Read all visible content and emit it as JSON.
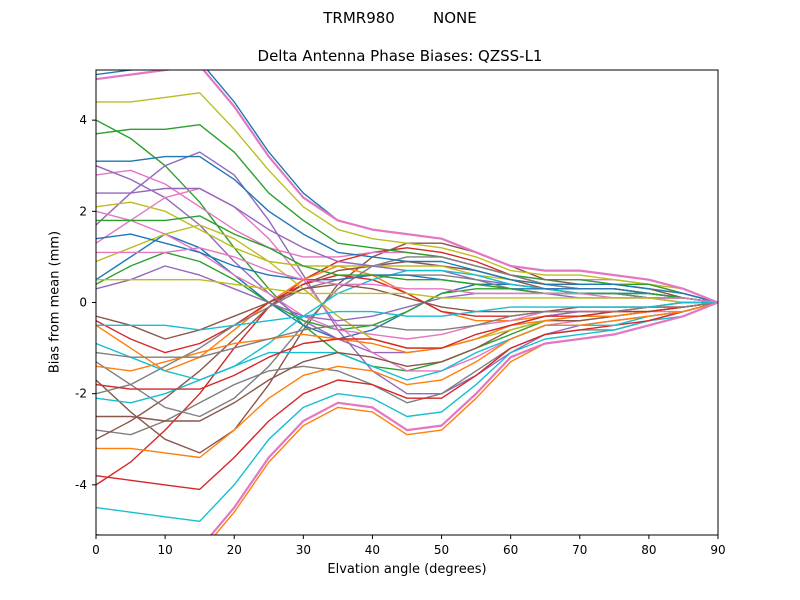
{
  "figure": {
    "suptitle": "TRMR980        NONE"
  },
  "chart_data": {
    "type": "line",
    "title": "Delta Antenna Phase Biases: QZSS-L1",
    "suptitle": "TRMR980        NONE",
    "xlabel": "Elvation angle (degrees)",
    "ylabel": "Bias from mean (mm)",
    "xlim": [
      0,
      90
    ],
    "ylim": [
      -5.1,
      5.1
    ],
    "xticks": [
      0,
      10,
      20,
      30,
      40,
      50,
      60,
      70,
      80,
      90
    ],
    "yticks": [
      -4,
      -2,
      0,
      2,
      4
    ],
    "grid": false,
    "legend": null,
    "x": [
      0,
      5,
      10,
      15,
      20,
      25,
      30,
      35,
      40,
      45,
      50,
      55,
      60,
      65,
      70,
      75,
      80,
      85,
      90
    ],
    "palette": [
      "#1f77b4",
      "#ff7f0e",
      "#2ca02c",
      "#d62728",
      "#9467bd",
      "#8c564b",
      "#e377c2",
      "#7f7f7f",
      "#bcbd22",
      "#17becf"
    ],
    "series": [
      {
        "color": "#1f77b4",
        "values": [
          5.0,
          5.1,
          5.2,
          5.3,
          4.4,
          3.3,
          2.4,
          1.8,
          1.6,
          1.5,
          1.4,
          1.1,
          0.8,
          0.7,
          0.7,
          0.6,
          0.5,
          0.3,
          0.0
        ]
      },
      {
        "color": "#ff7f0e",
        "values": [
          -5.2,
          -5.3,
          -5.4,
          -5.5,
          -4.6,
          -3.5,
          -2.7,
          -2.3,
          -2.4,
          -2.9,
          -2.8,
          -2.1,
          -1.3,
          -0.9,
          -0.8,
          -0.7,
          -0.5,
          -0.3,
          0.0
        ]
      },
      {
        "color": "#2ca02c",
        "values": [
          4.0,
          3.6,
          3.0,
          2.2,
          1.2,
          0.3,
          -0.5,
          -1.1,
          -1.4,
          -1.5,
          -1.3,
          -1.0,
          -0.7,
          -0.4,
          -0.3,
          -0.3,
          -0.2,
          -0.1,
          0.0
        ]
      },
      {
        "color": "#d62728",
        "values": [
          -4.0,
          -3.5,
          -2.8,
          -2.0,
          -1.0,
          -0.1,
          0.5,
          0.9,
          1.1,
          1.2,
          1.1,
          0.9,
          0.6,
          0.4,
          0.3,
          0.3,
          0.2,
          0.1,
          0.0
        ]
      },
      {
        "color": "#9467bd",
        "values": [
          1.7,
          2.4,
          3.0,
          3.3,
          2.8,
          1.8,
          0.6,
          -0.6,
          -1.5,
          -2.0,
          -2.0,
          -1.6,
          -1.1,
          -0.7,
          -0.5,
          -0.4,
          -0.3,
          -0.2,
          0.0
        ]
      },
      {
        "color": "#8c564b",
        "values": [
          -1.7,
          -2.4,
          -3.0,
          -3.3,
          -2.8,
          -1.8,
          -0.6,
          0.4,
          1.0,
          1.3,
          1.3,
          1.1,
          0.8,
          0.5,
          0.4,
          0.4,
          0.3,
          0.1,
          0.0
        ]
      },
      {
        "color": "#e377c2",
        "values": [
          2.8,
          2.9,
          2.6,
          2.1,
          1.6,
          1.2,
          1.0,
          1.0,
          1.1,
          1.1,
          1.0,
          0.8,
          0.6,
          0.5,
          0.5,
          0.5,
          0.4,
          0.2,
          0.0
        ]
      },
      {
        "color": "#7f7f7f",
        "values": [
          -2.8,
          -2.9,
          -2.6,
          -2.2,
          -1.8,
          -1.5,
          -1.4,
          -1.5,
          -1.8,
          -2.2,
          -2.0,
          -1.5,
          -1.0,
          -0.7,
          -0.6,
          -0.6,
          -0.4,
          -0.2,
          0.0
        ]
      },
      {
        "color": "#bcbd22",
        "values": [
          4.4,
          4.4,
          4.5,
          4.6,
          3.8,
          2.9,
          2.1,
          1.6,
          1.4,
          1.3,
          1.2,
          1.0,
          0.7,
          0.6,
          0.6,
          0.5,
          0.4,
          0.3,
          0.0
        ]
      },
      {
        "color": "#17becf",
        "values": [
          -4.5,
          -4.6,
          -4.7,
          -4.8,
          -4.0,
          -3.0,
          -2.3,
          -2.0,
          -2.1,
          -2.5,
          -2.4,
          -1.8,
          -1.1,
          -0.8,
          -0.7,
          -0.6,
          -0.4,
          -0.3,
          0.0
        ]
      },
      {
        "color": "#1f77b4",
        "values": [
          0.5,
          1.0,
          1.5,
          1.2,
          0.6,
          0.0,
          -0.5,
          -0.8,
          -0.6,
          -0.2,
          0.2,
          0.4,
          0.4,
          0.3,
          0.2,
          0.2,
          0.1,
          0.1,
          0.0
        ]
      },
      {
        "color": "#ff7f0e",
        "values": [
          -0.5,
          -1.0,
          -1.5,
          -1.2,
          -0.6,
          0.0,
          0.5,
          0.8,
          0.6,
          0.2,
          -0.2,
          -0.4,
          -0.4,
          -0.3,
          -0.2,
          -0.2,
          -0.1,
          -0.1,
          0.0
        ]
      },
      {
        "color": "#2ca02c",
        "values": [
          3.7,
          3.8,
          3.8,
          3.9,
          3.3,
          2.4,
          1.8,
          1.3,
          1.2,
          1.1,
          1.0,
          0.8,
          0.6,
          0.5,
          0.5,
          0.4,
          0.4,
          0.2,
          0.0
        ]
      },
      {
        "color": "#d62728",
        "values": [
          -3.8,
          -3.9,
          -4.0,
          -4.1,
          -3.4,
          -2.6,
          -2.0,
          -1.7,
          -1.8,
          -2.1,
          -2.1,
          -1.6,
          -1.0,
          -0.7,
          -0.6,
          -0.5,
          -0.4,
          -0.2,
          0.0
        ]
      },
      {
        "color": "#9467bd",
        "values": [
          3.0,
          2.7,
          2.3,
          1.7,
          0.9,
          0.2,
          -0.4,
          -0.8,
          -1.1,
          -1.1,
          -1.0,
          -0.8,
          -0.5,
          -0.3,
          -0.2,
          -0.2,
          -0.2,
          -0.1,
          0.0
        ]
      },
      {
        "color": "#8c564b",
        "values": [
          -3.0,
          -2.6,
          -2.1,
          -1.5,
          -0.8,
          -0.1,
          0.4,
          0.7,
          0.8,
          0.9,
          0.8,
          0.7,
          0.5,
          0.3,
          0.2,
          0.2,
          0.2,
          0.1,
          0.0
        ]
      },
      {
        "color": "#e377c2",
        "values": [
          1.3,
          1.8,
          2.3,
          2.5,
          2.1,
          1.4,
          0.5,
          -0.5,
          -1.1,
          -1.5,
          -1.5,
          -1.2,
          -0.8,
          -0.5,
          -0.4,
          -0.3,
          -0.2,
          -0.2,
          0.0
        ]
      },
      {
        "color": "#7f7f7f",
        "values": [
          -1.3,
          -1.8,
          -2.3,
          -2.5,
          -2.1,
          -1.4,
          -0.5,
          0.3,
          0.8,
          1.0,
          1.0,
          0.8,
          0.6,
          0.4,
          0.3,
          0.3,
          0.2,
          0.1,
          0.0
        ]
      },
      {
        "color": "#bcbd22",
        "values": [
          2.1,
          2.2,
          2.0,
          1.6,
          1.2,
          0.9,
          0.8,
          0.8,
          0.8,
          0.8,
          0.8,
          0.6,
          0.5,
          0.4,
          0.4,
          0.4,
          0.3,
          0.2,
          0.0
        ]
      },
      {
        "color": "#17becf",
        "values": [
          -2.1,
          -2.2,
          -2.0,
          -1.7,
          -1.4,
          -1.1,
          -1.1,
          -1.1,
          -1.4,
          -1.7,
          -1.5,
          -1.1,
          -0.8,
          -0.5,
          -0.5,
          -0.5,
          -0.3,
          -0.2,
          0.0
        ]
      },
      {
        "color": "#1f77b4",
        "values": [
          3.1,
          3.1,
          3.2,
          3.2,
          2.7,
          2.0,
          1.5,
          1.1,
          1.0,
          0.9,
          0.9,
          0.7,
          0.5,
          0.4,
          0.4,
          0.4,
          0.3,
          0.2,
          0.0
        ]
      },
      {
        "color": "#ff7f0e",
        "values": [
          -3.2,
          -3.2,
          -3.3,
          -3.4,
          -2.8,
          -2.1,
          -1.6,
          -1.4,
          -1.5,
          -1.8,
          -1.7,
          -1.3,
          -0.8,
          -0.5,
          -0.5,
          -0.4,
          -0.3,
          -0.2,
          0.0
        ]
      },
      {
        "color": "#2ca02c",
        "values": [
          0.4,
          0.8,
          1.1,
          0.9,
          0.5,
          0.0,
          -0.4,
          -0.6,
          -0.5,
          -0.2,
          0.2,
          0.3,
          0.3,
          0.2,
          0.2,
          0.2,
          0.1,
          0.1,
          0.0
        ]
      },
      {
        "color": "#d62728",
        "values": [
          -0.4,
          -0.8,
          -1.1,
          -0.9,
          -0.5,
          0.0,
          0.4,
          0.6,
          0.5,
          0.2,
          -0.2,
          -0.3,
          -0.3,
          -0.2,
          -0.2,
          -0.2,
          -0.1,
          -0.1,
          0.0
        ]
      },
      {
        "color": "#9467bd",
        "values": [
          2.4,
          2.4,
          2.5,
          2.5,
          2.1,
          1.6,
          1.2,
          0.9,
          0.8,
          0.7,
          0.7,
          0.5,
          0.4,
          0.3,
          0.3,
          0.3,
          0.2,
          0.1,
          0.0
        ]
      },
      {
        "color": "#8c564b",
        "values": [
          -2.5,
          -2.5,
          -2.6,
          -2.6,
          -2.2,
          -1.7,
          -1.3,
          -1.1,
          -1.2,
          -1.4,
          -1.3,
          -1.0,
          -0.6,
          -0.4,
          -0.4,
          -0.3,
          -0.2,
          -0.1,
          0.0
        ]
      },
      {
        "color": "#e377c2",
        "values": [
          2.0,
          1.8,
          1.5,
          1.1,
          0.6,
          0.2,
          -0.3,
          -0.6,
          -0.7,
          -0.8,
          -0.7,
          -0.5,
          -0.4,
          -0.2,
          -0.2,
          -0.2,
          -0.1,
          -0.1,
          0.0
        ]
      },
      {
        "color": "#7f7f7f",
        "values": [
          -2.0,
          -1.8,
          -1.4,
          -1.0,
          -0.5,
          -0.1,
          0.3,
          0.5,
          0.6,
          0.6,
          0.6,
          0.5,
          0.3,
          0.2,
          0.2,
          0.2,
          0.1,
          0.1,
          0.0
        ]
      },
      {
        "color": "#bcbd22",
        "values": [
          0.9,
          1.2,
          1.5,
          1.7,
          1.4,
          0.9,
          0.3,
          -0.3,
          -0.8,
          -1.0,
          -1.0,
          -0.8,
          -0.6,
          -0.4,
          -0.3,
          -0.2,
          -0.2,
          -0.1,
          0.0
        ]
      },
      {
        "color": "#17becf",
        "values": [
          -0.9,
          -1.2,
          -1.5,
          -1.7,
          -1.4,
          -0.9,
          -0.3,
          0.2,
          0.5,
          0.7,
          0.7,
          0.6,
          0.4,
          0.3,
          0.2,
          0.2,
          0.2,
          0.1,
          0.0
        ]
      },
      {
        "color": "#1f77b4",
        "values": [
          1.4,
          1.5,
          1.3,
          1.1,
          0.8,
          0.6,
          0.5,
          0.5,
          0.6,
          0.6,
          0.5,
          0.4,
          0.3,
          0.3,
          0.3,
          0.3,
          0.2,
          0.1,
          0.0
        ]
      },
      {
        "color": "#ff7f0e",
        "values": [
          -1.4,
          -1.5,
          -1.3,
          -1.1,
          -0.9,
          -0.8,
          -0.7,
          -0.8,
          -0.9,
          -1.1,
          -1.0,
          -0.8,
          -0.5,
          -0.4,
          -0.3,
          -0.3,
          -0.2,
          -0.1,
          0.0
        ]
      },
      {
        "color": "#2ca02c",
        "values": [
          1.8,
          1.8,
          1.8,
          1.9,
          1.5,
          1.2,
          0.8,
          0.6,
          0.6,
          0.5,
          0.5,
          0.4,
          0.3,
          0.2,
          0.2,
          0.2,
          0.2,
          0.1,
          0.0
        ]
      },
      {
        "color": "#d62728",
        "values": [
          -1.8,
          -1.9,
          -1.9,
          -1.9,
          -1.6,
          -1.2,
          -0.9,
          -0.8,
          -0.8,
          -1.0,
          -1.0,
          -0.7,
          -0.5,
          -0.3,
          -0.3,
          -0.2,
          -0.2,
          -0.1,
          0.0
        ]
      },
      {
        "color": "#9467bd",
        "values": [
          0.3,
          0.5,
          0.8,
          0.6,
          0.3,
          0.0,
          -0.3,
          -0.4,
          -0.3,
          -0.1,
          0.1,
          0.2,
          0.2,
          0.2,
          0.1,
          0.1,
          0.1,
          0.0,
          0.0
        ]
      },
      {
        "color": "#8c564b",
        "values": [
          -0.3,
          -0.5,
          -0.8,
          -0.6,
          -0.3,
          0.0,
          0.3,
          0.4,
          0.3,
          0.1,
          -0.1,
          -0.2,
          -0.2,
          -0.2,
          -0.1,
          -0.1,
          -0.1,
          0.0,
          0.0
        ]
      },
      {
        "color": "#e377c2",
        "values": [
          1.1,
          1.1,
          1.1,
          1.2,
          1.0,
          0.7,
          0.5,
          0.4,
          0.4,
          0.3,
          0.3,
          0.2,
          0.2,
          0.2,
          0.2,
          0.1,
          0.1,
          0.1,
          0.0
        ]
      },
      {
        "color": "#7f7f7f",
        "values": [
          -1.1,
          -1.2,
          -1.2,
          -1.2,
          -1.0,
          -0.8,
          -0.6,
          -0.5,
          -0.5,
          -0.6,
          -0.6,
          -0.5,
          -0.3,
          -0.2,
          -0.2,
          -0.2,
          -0.1,
          -0.1,
          0.0
        ]
      },
      {
        "color": "#bcbd22",
        "values": [
          0.5,
          0.5,
          0.5,
          0.5,
          0.4,
          0.3,
          0.2,
          0.2,
          0.2,
          0.2,
          0.1,
          0.1,
          0.1,
          0.1,
          0.1,
          0.1,
          0.1,
          0.0,
          0.0
        ]
      },
      {
        "color": "#17becf",
        "values": [
          -0.5,
          -0.5,
          -0.5,
          -0.6,
          -0.5,
          -0.4,
          -0.3,
          -0.2,
          -0.2,
          -0.3,
          -0.3,
          -0.2,
          -0.1,
          -0.1,
          -0.1,
          -0.1,
          -0.1,
          0.0,
          0.0
        ]
      },
      {
        "color": "#e377c2",
        "w": 2.2,
        "values": [
          4.9,
          5.0,
          5.1,
          5.2,
          4.3,
          3.2,
          2.3,
          1.8,
          1.6,
          1.5,
          1.4,
          1.1,
          0.8,
          0.7,
          0.7,
          0.6,
          0.5,
          0.3,
          0.0
        ]
      },
      {
        "color": "#e377c2",
        "w": 2.2,
        "values": [
          -5.1,
          -5.2,
          -5.3,
          -5.4,
          -4.5,
          -3.4,
          -2.6,
          -2.2,
          -2.3,
          -2.8,
          -2.7,
          -2.0,
          -1.2,
          -0.9,
          -0.8,
          -0.7,
          -0.5,
          -0.3,
          0.0
        ]
      }
    ]
  }
}
